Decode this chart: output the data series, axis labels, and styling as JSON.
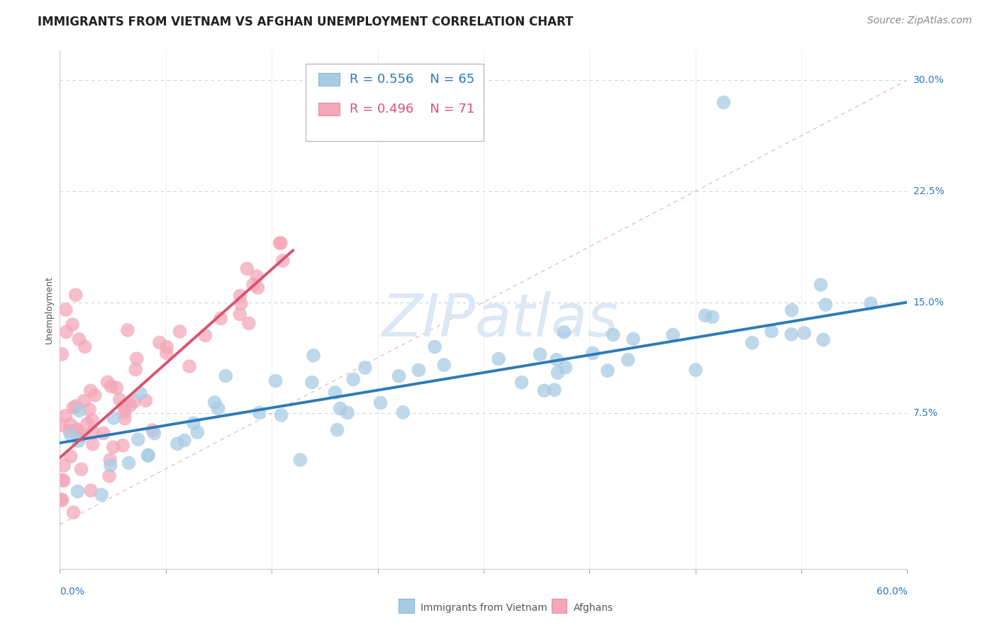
{
  "title": "IMMIGRANTS FROM VIETNAM VS AFGHAN UNEMPLOYMENT CORRELATION CHART",
  "source_text": "Source: ZipAtlas.com",
  "ylabel": "Unemployment",
  "xlim": [
    0.0,
    0.6
  ],
  "ylim": [
    -0.03,
    0.32
  ],
  "ytick_vals": [
    0.0,
    0.075,
    0.15,
    0.225,
    0.3
  ],
  "ytick_labels": [
    "",
    "7.5%",
    "15.0%",
    "22.5%",
    "30.0%"
  ],
  "legend_r1": "R = 0.556",
  "legend_n1": "N = 65",
  "legend_r2": "R = 0.496",
  "legend_n2": "N = 71",
  "blue_color": "#a8cce4",
  "pink_color": "#f4a7b9",
  "blue_line_color": "#2b7bba",
  "pink_line_color": "#d9536f",
  "diag_color": "#f0b8c8",
  "grid_color": "#c8d4e0",
  "watermark_color": "#dce8f4",
  "background_color": "#ffffff",
  "blue_trend_x0": 0.0,
  "blue_trend_y0": 0.055,
  "blue_trend_x1": 0.6,
  "blue_trend_y1": 0.15,
  "pink_trend_x0": 0.0,
  "pink_trend_y0": 0.045,
  "pink_trend_x1": 0.165,
  "pink_trend_y1": 0.185,
  "title_fontsize": 12,
  "source_fontsize": 10,
  "axis_label_fontsize": 9,
  "tick_fontsize": 10,
  "legend_fontsize": 13,
  "watermark_fontsize": 60,
  "marker_size": 200
}
